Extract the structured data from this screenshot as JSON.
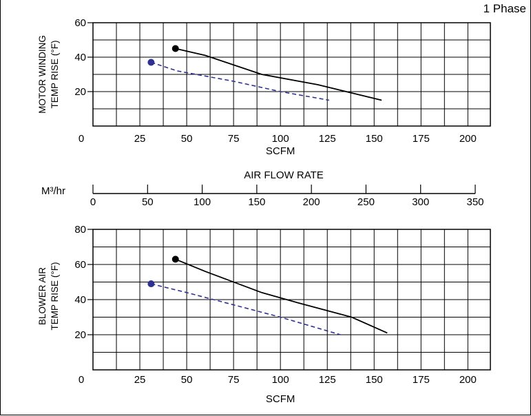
{
  "header": {
    "phase_label": "1 Phase"
  },
  "airflow_scale": {
    "title": "AIR FLOW RATE",
    "unit": "M³/hr",
    "ticks": [
      "0",
      "50",
      "100",
      "150",
      "200",
      "250",
      "300",
      "350"
    ]
  },
  "colors": {
    "series1": "#000000",
    "series2": "#2e3192",
    "grid": "#000000"
  },
  "chart_data": [
    {
      "type": "line",
      "title": "",
      "xlabel": "SCFM",
      "ylabel_lines": [
        "MOTOR WINDING",
        "TEMP RISE (°F)"
      ],
      "xlim": [
        0,
        212
      ],
      "ylim": [
        0,
        60
      ],
      "x_ticks": [
        0,
        25,
        50,
        75,
        100,
        125,
        150,
        175,
        200
      ],
      "y_ticks": [
        20,
        40,
        60
      ],
      "grid": true,
      "series": [
        {
          "style": "solid",
          "color": "#000000",
          "x": [
            44,
            60,
            90,
            120,
            154
          ],
          "y": [
            45,
            41,
            30,
            24,
            15
          ]
        },
        {
          "style": "dashed",
          "color": "#2e3192",
          "x": [
            31,
            45,
            75,
            100,
            126
          ],
          "y": [
            37,
            32,
            26,
            20,
            15
          ]
        }
      ]
    },
    {
      "type": "line",
      "title": "",
      "xlabel": "SCFM",
      "ylabel_lines": [
        "BLOWER AIR",
        "TEMP RISE (°F)"
      ],
      "xlim": [
        0,
        212
      ],
      "ylim": [
        0,
        80
      ],
      "x_ticks": [
        0,
        25,
        50,
        75,
        100,
        125,
        150,
        175,
        200
      ],
      "y_ticks": [
        20,
        40,
        60,
        80
      ],
      "grid": true,
      "series": [
        {
          "style": "solid",
          "color": "#000000",
          "x": [
            44,
            60,
            90,
            110,
            138,
            157
          ],
          "y": [
            63,
            56,
            44,
            38,
            30,
            21
          ]
        },
        {
          "style": "dashed",
          "color": "#2e3192",
          "x": [
            31,
            50,
            75,
            100,
            132
          ],
          "y": [
            49,
            44,
            37,
            30,
            20
          ]
        }
      ]
    }
  ]
}
